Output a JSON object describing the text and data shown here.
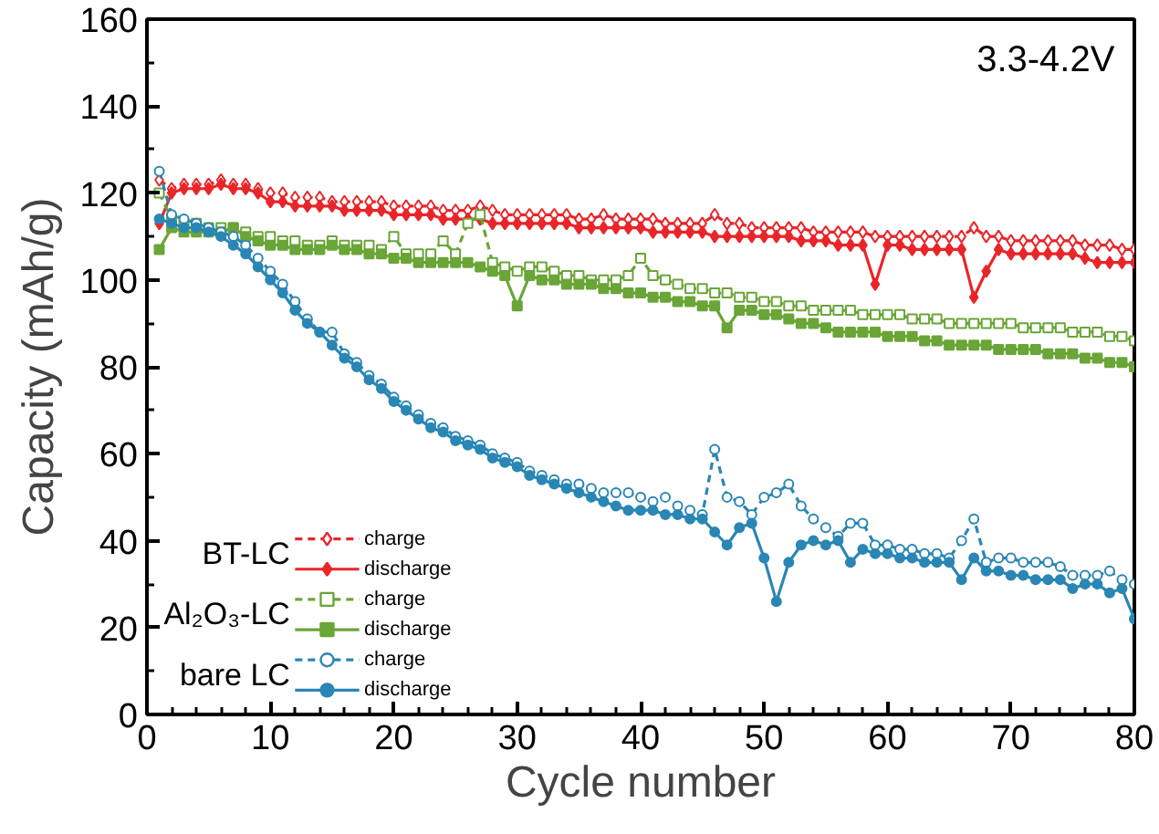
{
  "chart_data": {
    "type": "line",
    "xlabel": "Cycle number",
    "ylabel": "Capacity (mAh/g)",
    "annotations": [
      "3.3-4.2V",
      "BT-LC",
      "Al₂O₃-LC",
      "bare LC"
    ],
    "x": [
      1,
      2,
      3,
      4,
      5,
      6,
      7,
      8,
      9,
      10,
      11,
      12,
      13,
      14,
      15,
      16,
      17,
      18,
      19,
      20,
      21,
      22,
      23,
      24,
      25,
      26,
      27,
      28,
      29,
      30,
      31,
      32,
      33,
      34,
      35,
      36,
      37,
      38,
      39,
      40,
      41,
      42,
      43,
      44,
      45,
      46,
      47,
      48,
      49,
      50,
      51,
      52,
      53,
      54,
      55,
      56,
      57,
      58,
      59,
      60,
      61,
      62,
      63,
      64,
      65,
      66,
      67,
      68,
      69,
      70,
      71,
      72,
      73,
      74,
      75,
      76,
      77,
      78,
      79,
      80
    ],
    "xlim": [
      0,
      80
    ],
    "xticks": [
      0,
      10,
      20,
      30,
      40,
      50,
      60,
      70,
      80
    ],
    "ylim": [
      0,
      160
    ],
    "yticks": [
      0,
      20,
      40,
      60,
      80,
      100,
      120,
      140,
      160
    ],
    "grid": false,
    "legend": "bottom left",
    "series": [
      {
        "name": "charge",
        "color": "#e8262a",
        "marker": "diamond",
        "line_style": "dashed",
        "values": [
          123,
          121,
          122,
          122,
          122,
          123,
          122,
          122,
          121,
          120,
          120,
          119,
          119,
          119,
          118,
          118,
          118,
          118,
          118,
          117,
          117,
          117,
          117,
          116,
          116,
          116,
          117,
          116,
          115,
          115,
          115,
          115,
          115,
          115,
          114,
          114,
          115,
          114,
          114,
          114,
          114,
          113,
          113,
          113,
          113,
          115,
          113,
          113,
          112,
          112,
          112,
          112,
          112,
          111,
          111,
          111,
          111,
          111,
          110,
          110,
          110,
          110,
          110,
          110,
          110,
          110,
          112,
          110,
          110,
          109,
          109,
          109,
          109,
          109,
          109,
          108,
          108,
          108,
          107,
          107
        ]
      },
      {
        "name": "discharge",
        "color": "#e8262a",
        "marker": "diamond",
        "line_style": "solid",
        "values": [
          113,
          120,
          121,
          121,
          121,
          122,
          121,
          121,
          120,
          118,
          118,
          117,
          117,
          117,
          117,
          116,
          116,
          116,
          116,
          115,
          115,
          115,
          115,
          114,
          114,
          114,
          114,
          113,
          113,
          113,
          113,
          113,
          113,
          113,
          112,
          112,
          112,
          112,
          112,
          112,
          111,
          111,
          111,
          111,
          111,
          110,
          110,
          110,
          110,
          110,
          110,
          110,
          109,
          109,
          109,
          108,
          108,
          108,
          99,
          108,
          108,
          107,
          107,
          107,
          107,
          107,
          96,
          102,
          107,
          106,
          106,
          106,
          106,
          106,
          106,
          105,
          104,
          104,
          104,
          104
        ]
      },
      {
        "name": "charge",
        "color": "#6aa537",
        "marker": "square",
        "line_style": "dashed",
        "values": [
          120,
          114,
          113,
          113,
          112,
          112,
          112,
          111,
          110,
          110,
          109,
          109,
          108,
          108,
          109,
          108,
          108,
          108,
          107,
          110,
          106,
          106,
          106,
          109,
          106,
          113,
          115,
          104,
          103,
          102,
          103,
          103,
          102,
          101,
          101,
          100,
          100,
          100,
          101,
          105,
          101,
          100,
          99,
          98,
          98,
          97,
          97,
          96,
          96,
          95,
          95,
          94,
          94,
          93,
          93,
          93,
          93,
          92,
          92,
          92,
          92,
          91,
          91,
          91,
          90,
          90,
          90,
          90,
          90,
          90,
          89,
          89,
          89,
          89,
          88,
          88,
          88,
          87,
          87,
          86
        ]
      },
      {
        "name": "discharge",
        "color": "#6aa537",
        "marker": "square",
        "line_style": "solid",
        "values": [
          107,
          112,
          111,
          111,
          111,
          111,
          112,
          110,
          109,
          108,
          108,
          107,
          107,
          107,
          108,
          107,
          107,
          106,
          106,
          105,
          105,
          104,
          104,
          104,
          104,
          104,
          103,
          102,
          101,
          94,
          101,
          100,
          100,
          99,
          99,
          99,
          98,
          98,
          97,
          97,
          96,
          96,
          95,
          95,
          94,
          94,
          89,
          93,
          93,
          92,
          92,
          91,
          90,
          90,
          89,
          88,
          88,
          88,
          88,
          87,
          87,
          87,
          86,
          86,
          85,
          85,
          85,
          85,
          84,
          84,
          84,
          84,
          83,
          83,
          83,
          82,
          82,
          81,
          81,
          80
        ]
      },
      {
        "name": "charge",
        "color": "#2a86b4",
        "marker": "circle",
        "line_style": "dashed",
        "values": [
          125,
          115,
          114,
          113,
          112,
          111,
          110,
          108,
          105,
          102,
          99,
          95,
          91,
          88,
          88,
          83,
          81,
          78,
          76,
          73,
          71,
          69,
          67,
          66,
          64,
          63,
          62,
          60,
          59,
          58,
          56,
          55,
          54,
          53,
          53,
          52,
          51,
          51,
          51,
          50,
          49,
          50,
          48,
          47,
          46,
          61,
          50,
          49,
          46,
          50,
          51,
          53,
          48,
          45,
          43,
          41,
          44,
          44,
          39,
          39,
          38,
          38,
          37,
          37,
          36,
          40,
          45,
          35,
          36,
          36,
          35,
          35,
          35,
          34,
          32,
          32,
          32,
          33,
          31,
          30
        ]
      },
      {
        "name": "discharge",
        "color": "#2a86b4",
        "marker": "circle",
        "line_style": "solid",
        "values": [
          114,
          113,
          112,
          112,
          111,
          110,
          108,
          106,
          103,
          100,
          97,
          93,
          90,
          88,
          85,
          82,
          80,
          77,
          75,
          72,
          70,
          68,
          66,
          65,
          63,
          62,
          61,
          59,
          58,
          57,
          55,
          54,
          53,
          52,
          51,
          50,
          49,
          48,
          47,
          47,
          47,
          46,
          46,
          45,
          45,
          42,
          39,
          43,
          44,
          36,
          26,
          35,
          39,
          40,
          39,
          40,
          35,
          38,
          37,
          37,
          36,
          36,
          35,
          35,
          35,
          31,
          36,
          33,
          33,
          32,
          32,
          31,
          31,
          31,
          29,
          30,
          30,
          28,
          29,
          22
        ]
      }
    ]
  }
}
